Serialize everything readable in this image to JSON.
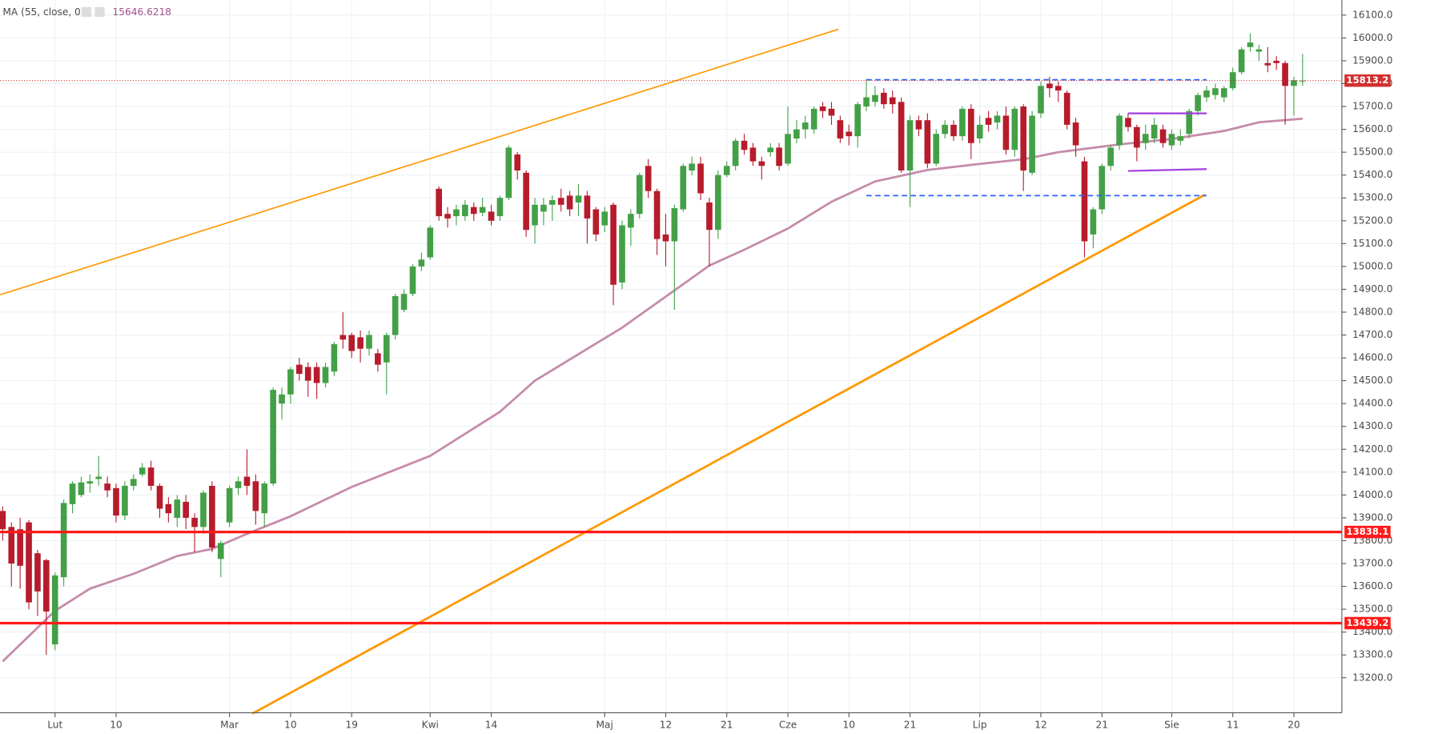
{
  "chart_data": {
    "type": "candlestick",
    "up_color": "#43a047",
    "down_color": "#b71c2c",
    "xlim": [
      -0.3,
      153.5
    ],
    "ylim": [
      13047,
      16166
    ],
    "grid": true,
    "xticks": [
      {
        "value": 6,
        "label": "Lut"
      },
      {
        "value": 13,
        "label": "10"
      },
      {
        "value": 26,
        "label": "Mar"
      },
      {
        "value": 33,
        "label": "10"
      },
      {
        "value": 40,
        "label": "19"
      },
      {
        "value": 49,
        "label": "Kwi"
      },
      {
        "value": 56,
        "label": "14"
      },
      {
        "value": 69,
        "label": "Maj"
      },
      {
        "value": 76,
        "label": "12"
      },
      {
        "value": 83,
        "label": "21"
      },
      {
        "value": 90,
        "label": "Cze"
      },
      {
        "value": 97,
        "label": "10"
      },
      {
        "value": 104,
        "label": "21"
      },
      {
        "value": 112,
        "label": "Lip"
      },
      {
        "value": 119,
        "label": "12"
      },
      {
        "value": 126,
        "label": "21"
      },
      {
        "value": 134,
        "label": "Sie"
      },
      {
        "value": 141,
        "label": "11"
      },
      {
        "value": 148,
        "label": "20"
      }
    ],
    "yticks": [
      {
        "value": 13200,
        "label": "13200.0"
      },
      {
        "value": 13300,
        "label": "13300.0"
      },
      {
        "value": 13400,
        "label": "13400.0"
      },
      {
        "value": 13500,
        "label": "13500.0"
      },
      {
        "value": 13600,
        "label": "13600.0"
      },
      {
        "value": 13700,
        "label": "13700.0"
      },
      {
        "value": 13800,
        "label": "13800.0"
      },
      {
        "value": 13900,
        "label": "13900.0"
      },
      {
        "value": 14000,
        "label": "14000.0"
      },
      {
        "value": 14100,
        "label": "14100.0"
      },
      {
        "value": 14200,
        "label": "14200.0"
      },
      {
        "value": 14300,
        "label": "14300.0"
      },
      {
        "value": 14400,
        "label": "14400.0"
      },
      {
        "value": 14500,
        "label": "14500.0"
      },
      {
        "value": 14600,
        "label": "14600.0"
      },
      {
        "value": 14700,
        "label": "14700.0"
      },
      {
        "value": 14800,
        "label": "14800.0"
      },
      {
        "value": 14900,
        "label": "14900.0"
      },
      {
        "value": 15000,
        "label": "15000.0"
      },
      {
        "value": 15100,
        "label": "15100.0"
      },
      {
        "value": 15200,
        "label": "15200.0"
      },
      {
        "value": 15300,
        "label": "15300.0"
      },
      {
        "value": 15400,
        "label": "15400.0"
      },
      {
        "value": 15500,
        "label": "15500.0"
      },
      {
        "value": 15600,
        "label": "15600.0"
      },
      {
        "value": 15700,
        "label": "15700.0"
      },
      {
        "value": 15800,
        "label": "15800.0"
      },
      {
        "value": 15900,
        "label": "15900.0"
      },
      {
        "value": 16000,
        "label": "16000.0"
      },
      {
        "value": 16100,
        "label": "16100.0"
      }
    ],
    "open": [
      13930,
      13860,
      13850,
      13880,
      13745,
      13715,
      13346,
      13640,
      13960,
      14000,
      14050,
      14070,
      14050,
      14030,
      13910,
      14040,
      14090,
      14120,
      14040,
      13960,
      13900,
      13970,
      13900,
      13860,
      14040,
      13720,
      13880,
      14030,
      14080,
      14060,
      13920,
      14050,
      14400,
      14440,
      14570,
      14560,
      14560,
      14490,
      14540,
      14700,
      14700,
      14690,
      14640,
      14620,
      14580,
      14700,
      14810,
      14880,
      15000,
      15040,
      15340,
      15230,
      15220,
      15220,
      15260,
      15235,
      15240,
      15220,
      15300,
      15490,
      15410,
      15180,
      15240,
      15270,
      15300,
      15310,
      15280,
      15310,
      15250,
      15180,
      15270,
      14930,
      15170,
      15230,
      15440,
      15330,
      15140,
      15110,
      15250,
      15420,
      15450,
      15280,
      15160,
      15400,
      15440,
      15550,
      15520,
      15460,
      15500,
      15520,
      15450,
      15560,
      15600,
      15600,
      15700,
      15690,
      15640,
      15590,
      15570,
      15700,
      15720,
      15760,
      15740,
      15720,
      15420,
      15640,
      15640,
      15450,
      15580,
      15620,
      15570,
      15690,
      15560,
      15650,
      15630,
      15660,
      15510,
      15700,
      15410,
      15670,
      15800,
      15790,
      15760,
      15630,
      15460,
      15140,
      15250,
      15440,
      15530,
      15650,
      15610,
      15540,
      15560,
      15600,
      15530,
      15550,
      15580,
      15680,
      15740,
      15750,
      15740,
      15780,
      15850,
      15960,
      15940,
      15890,
      15900,
      15890,
      15790,
      15810
    ],
    "high": [
      13950,
      13880,
      13900,
      13890,
      13760,
      13720,
      13660,
      13980,
      14060,
      14080,
      14090,
      14170,
      14080,
      14050,
      14060,
      14090,
      14140,
      14150,
      14050,
      13990,
      14000,
      14000,
      13920,
      14020,
      14060,
      13800,
      14040,
      14080,
      14200,
      14090,
      14060,
      14470,
      14470,
      14560,
      14600,
      14580,
      14580,
      14580,
      14670,
      14800,
      14710,
      14720,
      14720,
      14640,
      14710,
      14880,
      14900,
      15010,
      15060,
      15180,
      15350,
      15260,
      15270,
      15290,
      15280,
      15300,
      15270,
      15310,
      15530,
      15500,
      15420,
      15300,
      15300,
      15310,
      15340,
      15330,
      15360,
      15330,
      15260,
      15260,
      15280,
      15200,
      15250,
      15410,
      15470,
      15340,
      15230,
      15270,
      15450,
      15480,
      15480,
      15300,
      15420,
      15460,
      15560,
      15580,
      15540,
      15480,
      15540,
      15540,
      15700,
      15640,
      15660,
      15700,
      15720,
      15720,
      15660,
      15620,
      15720,
      15820,
      15790,
      15780,
      15770,
      15740,
      15660,
      15660,
      15670,
      15600,
      15640,
      15640,
      15700,
      15710,
      15660,
      15680,
      15680,
      15700,
      15700,
      15710,
      15680,
      15810,
      15830,
      15810,
      15770,
      15650,
      15480,
      15260,
      15450,
      15530,
      15670,
      15670,
      15620,
      15620,
      15650,
      15620,
      15600,
      15600,
      15690,
      15760,
      15790,
      15800,
      15790,
      15870,
      15960,
      16020,
      15970,
      15960,
      15920,
      15900,
      15830,
      15930
    ],
    "low": [
      13800,
      13600,
      13590,
      13500,
      13470,
      13300,
      13320,
      13600,
      13920,
      13990,
      14010,
      14040,
      13990,
      13880,
      13890,
      14020,
      14080,
      14020,
      13900,
      13880,
      13860,
      13850,
      13750,
      13830,
      13750,
      13640,
      13860,
      14000,
      14000,
      13870,
      13860,
      14040,
      14330,
      14400,
      14500,
      14430,
      14420,
      14470,
      14520,
      14640,
      14600,
      14580,
      14610,
      14540,
      14440,
      14680,
      14800,
      14870,
      14980,
      15030,
      15200,
      15170,
      15180,
      15200,
      15200,
      15220,
      15180,
      15200,
      15290,
      15380,
      15130,
      15100,
      15180,
      15200,
      15240,
      15220,
      15220,
      15100,
      15110,
      15150,
      14830,
      14900,
      15090,
      15210,
      15300,
      15050,
      15000,
      14810,
      15240,
      15400,
      15290,
      15000,
      15120,
      15390,
      15420,
      15490,
      15440,
      15380,
      15480,
      15420,
      15440,
      15540,
      15560,
      15580,
      15650,
      15620,
      15540,
      15530,
      15520,
      15680,
      15700,
      15690,
      15670,
      15410,
      15260,
      15570,
      15430,
      15440,
      15560,
      15550,
      15550,
      15470,
      15540,
      15590,
      15600,
      15490,
      15480,
      15330,
      15400,
      15650,
      15740,
      15720,
      15600,
      15480,
      15040,
      15080,
      15230,
      15420,
      15510,
      15590,
      15460,
      15510,
      15540,
      15520,
      15510,
      15530,
      15560,
      15660,
      15720,
      15730,
      15720,
      15770,
      15840,
      15940,
      15900,
      15850,
      15860,
      15620,
      15660,
      15790
    ],
    "close": [
      13850,
      13700,
      13690,
      13530,
      13578,
      13490,
      13648,
      13965,
      14050,
      14055,
      14060,
      14080,
      14020,
      13910,
      14040,
      14070,
      14120,
      14040,
      13940,
      13920,
      13980,
      13900,
      13860,
      14010,
      13770,
      13790,
      14030,
      14060,
      14040,
      13930,
      14050,
      14460,
      14440,
      14550,
      14530,
      14500,
      14490,
      14560,
      14660,
      14680,
      14630,
      14640,
      14700,
      14570,
      14700,
      14870,
      14880,
      15000,
      15030,
      15170,
      15220,
      15210,
      15250,
      15270,
      15230,
      15260,
      15200,
      15300,
      15520,
      15420,
      15160,
      15270,
      15270,
      15290,
      15270,
      15250,
      15310,
      15210,
      15140,
      15240,
      14920,
      15180,
      15230,
      15400,
      15330,
      15120,
      15110,
      15255,
      15440,
      15450,
      15320,
      15160,
      15400,
      15440,
      15550,
      15510,
      15460,
      15440,
      15520,
      15440,
      15580,
      15600,
      15630,
      15690,
      15680,
      15660,
      15560,
      15570,
      15710,
      15740,
      15750,
      15710,
      15710,
      15420,
      15640,
      15600,
      15450,
      15580,
      15620,
      15570,
      15690,
      15540,
      15620,
      15620,
      15660,
      15510,
      15690,
      15420,
      15660,
      15790,
      15780,
      15770,
      15620,
      15530,
      15110,
      15250,
      15440,
      15520,
      15660,
      15610,
      15520,
      15580,
      15620,
      15540,
      15580,
      15570,
      15680,
      15750,
      15770,
      15780,
      15780,
      15850,
      15950,
      15980,
      15950,
      15880,
      15890,
      15790,
      15815,
      15813.2
    ],
    "ma": {
      "name": "MA (55, close, 0)",
      "color": "#c58bab",
      "x": [
        0,
        6,
        10,
        15,
        20,
        24,
        28,
        33,
        40,
        49,
        57,
        61,
        71,
        76,
        81,
        85,
        90,
        95,
        100,
        106,
        112,
        117,
        121,
        128,
        134,
        140,
        144,
        149
      ],
      "values": [
        13272,
        13493,
        13590,
        13655,
        13733,
        13764,
        13830,
        13907,
        14035,
        14171,
        14364,
        14500,
        14732,
        14868,
        15004,
        15073,
        15166,
        15283,
        15372,
        15422,
        15449,
        15469,
        15500,
        15534,
        15558,
        15593,
        15631,
        15646.6218
      ]
    },
    "drawings": [
      {
        "color": "#ff9800",
        "style": "thin",
        "x": [
          -0.3,
          95.8
        ],
        "values": [
          14876,
          16038
        ]
      },
      {
        "color": "#ff9800",
        "style": "thick",
        "x": [
          28.6,
          137.8
        ],
        "values": [
          13043,
          15314
        ]
      },
      {
        "color": "#2962ff",
        "style": "dashed",
        "x": [
          99,
          138
        ],
        "values": [
          15817,
          15817
        ]
      },
      {
        "color": "#2962ff",
        "style": "dashed",
        "x": [
          99,
          138
        ],
        "values": [
          15310,
          15310
        ]
      },
      {
        "color": "#a23de0",
        "style": "solid",
        "x": [
          129,
          138
        ],
        "values": [
          15670,
          15670
        ]
      },
      {
        "color": "#a23de0",
        "style": "solid",
        "x": [
          129,
          138
        ],
        "values": [
          15418,
          15426
        ]
      }
    ],
    "price_lines": [
      {
        "value": 15813.2,
        "color": "#d32f2f",
        "style": "dotted"
      },
      {
        "value": 13838.1,
        "color": "#ff1a1a",
        "style": "solid"
      },
      {
        "value": 13439.2,
        "color": "#ff1a1a",
        "style": "solid"
      }
    ]
  }
}
